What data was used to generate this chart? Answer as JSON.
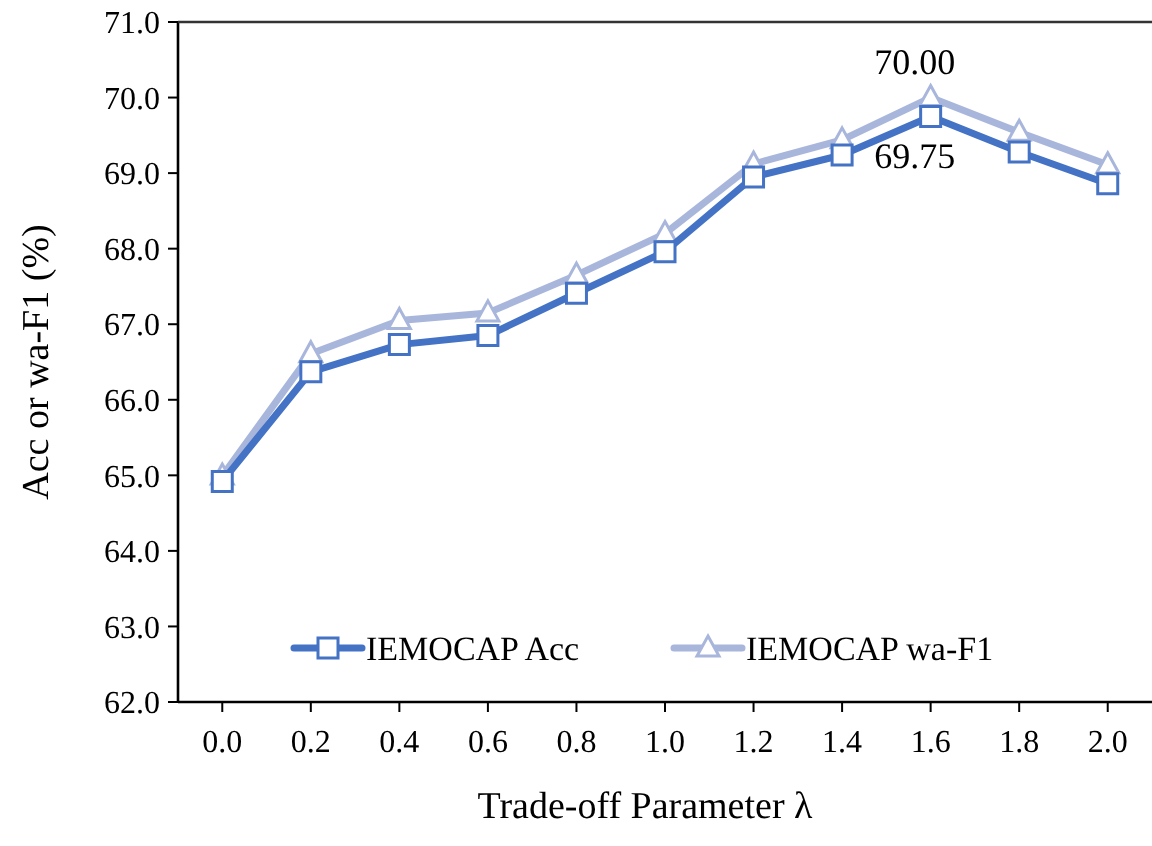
{
  "chart_data": {
    "type": "line",
    "xlabel": "Trade-off Parameter λ",
    "ylabel": "Acc or wa-F1 (%)",
    "x": [
      0,
      0.2,
      0.4,
      0.6,
      0.8,
      1.0,
      1.2,
      1.4,
      1.6,
      1.8,
      2.0
    ],
    "series": [
      {
        "name": "IEMOCAP Acc",
        "color": "#4472c4",
        "marker": "square",
        "values": [
          64.92,
          66.37,
          66.73,
          66.85,
          67.41,
          67.96,
          68.95,
          69.24,
          69.75,
          69.28,
          68.86
        ]
      },
      {
        "name": "IEMOCAP wa-F1",
        "color": "#a9b6dc",
        "marker": "triangle",
        "values": [
          64.99,
          66.61,
          67.05,
          67.15,
          67.65,
          68.2,
          69.12,
          69.44,
          70.0,
          69.54,
          69.11
        ]
      }
    ],
    "xlim": [
      -0.1,
      2.1
    ],
    "ylim": [
      62,
      71
    ],
    "xticks": [
      {
        "value": 0,
        "label": "0.0"
      },
      {
        "value": 0.2,
        "label": "0.2"
      },
      {
        "value": 0.4,
        "label": "0.4"
      },
      {
        "value": 0.6,
        "label": "0.6"
      },
      {
        "value": 0.8,
        "label": "0.8"
      },
      {
        "value": 1,
        "label": "1.0"
      },
      {
        "value": 1.2,
        "label": "1.2"
      },
      {
        "value": 1.4,
        "label": "1.4"
      },
      {
        "value": 1.6,
        "label": "1.6"
      },
      {
        "value": 1.8,
        "label": "1.8"
      },
      {
        "value": 2,
        "label": "2.0"
      }
    ],
    "yticks": [
      {
        "value": 62,
        "label": "62.0"
      },
      {
        "value": 63,
        "label": "63.0"
      },
      {
        "value": 64,
        "label": "64.0"
      },
      {
        "value": 65,
        "label": "65.0"
      },
      {
        "value": 66,
        "label": "66.0"
      },
      {
        "value": 67,
        "label": "67.0"
      },
      {
        "value": 68,
        "label": "68.0"
      },
      {
        "value": 69,
        "label": "69.0"
      },
      {
        "value": 70,
        "label": "70.0"
      },
      {
        "value": 71,
        "label": "71.0"
      }
    ],
    "annotations": [
      {
        "text": "70.00",
        "x": 1.6,
        "y": 70.0
      },
      {
        "text": "69.75",
        "x": 1.6,
        "y": 69.75
      }
    ],
    "legend": "bottom",
    "grid": false
  }
}
